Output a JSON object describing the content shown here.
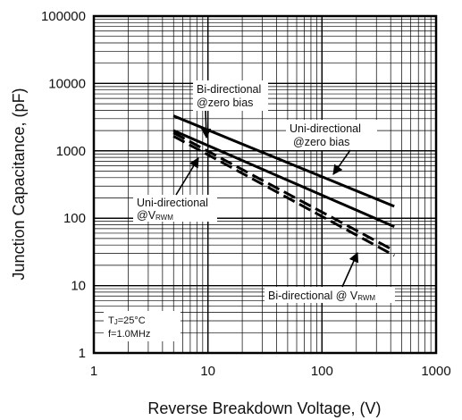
{
  "chart_data": {
    "type": "line",
    "xlabel": "Reverse Breakdown Voltage,  (V)",
    "ylabel": "Junction Capacitance, (pF)",
    "xscale": "log",
    "yscale": "log",
    "xlim": [
      1,
      1000
    ],
    "ylim": [
      1,
      100000
    ],
    "grid": true,
    "x_ticks": [
      "1",
      "10",
      "100",
      "1000"
    ],
    "y_ticks": [
      "1",
      "10",
      "100",
      "1000",
      "10000",
      "100000"
    ],
    "series": [
      {
        "line_style": "solid",
        "x": [
          5,
          430
        ],
        "y": [
          3300,
          150
        ]
      },
      {
        "line_style": "solid",
        "x": [
          5,
          430
        ],
        "y": [
          2000,
          75
        ]
      },
      {
        "line_style": "dashed",
        "x": [
          5,
          430
        ],
        "y": [
          1850,
          33
        ]
      },
      {
        "line_style": "dashed",
        "x": [
          5,
          430
        ],
        "y": [
          1650,
          28
        ]
      }
    ],
    "annotations": [
      {
        "lines": [
          "Bi-directional",
          "@zero bias"
        ]
      },
      {
        "lines": [
          "Uni-directional",
          "@zero bias"
        ]
      },
      {
        "lines": [
          "Uni-directional",
          "@V",
          "RWM"
        ]
      },
      {
        "lines": [
          "Bi-directional @ V",
          "RWM"
        ]
      }
    ],
    "conditions": [
      "T",
      "J",
      "=25°C",
      "f=1.0MHz"
    ]
  }
}
